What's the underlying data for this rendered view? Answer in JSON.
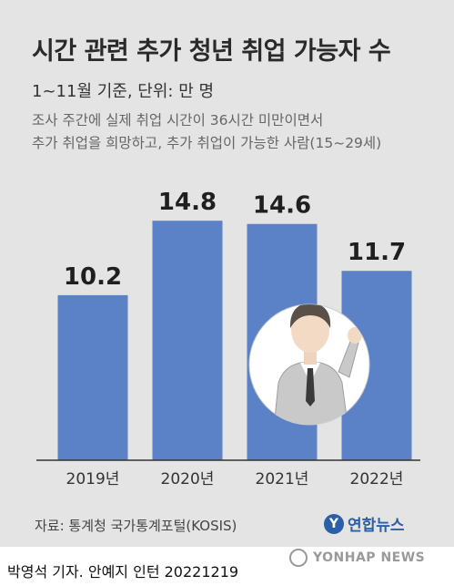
{
  "header": {
    "title": "시간 관련 추가 청년 취업 가능자 수",
    "unit_label": "1~11월 기준, 단위: 만 명",
    "note_line1": "조사 주간에 실제 취업 시간이 36시간 미만이면서",
    "note_line2": "추가 취업을 희망하고, 추가 취업이 가능한 사람(15~29세)"
  },
  "chart_data": {
    "type": "bar",
    "categories": [
      "2019년",
      "2020년",
      "2021년",
      "2022년"
    ],
    "values": [
      10.2,
      14.8,
      14.6,
      11.7
    ],
    "value_labels": [
      "10.2",
      "14.8",
      "14.6",
      "11.7"
    ],
    "title": "시간 관련 추가 청년 취업 가능자 수",
    "xlabel": "",
    "ylabel": "",
    "ylim": [
      0,
      16.5
    ],
    "grid": false,
    "bar_color": "#5b82c6",
    "axis_color": "#333333"
  },
  "footer": {
    "source": "자료: 통계청 국가통계포털(KOSIS)",
    "logo_text": "연합뉴스",
    "logo_mark": "Y",
    "credit": "박영석 기자. 안예지 인턴  20221219",
    "watermark_text": "YONHAP NEWS"
  }
}
